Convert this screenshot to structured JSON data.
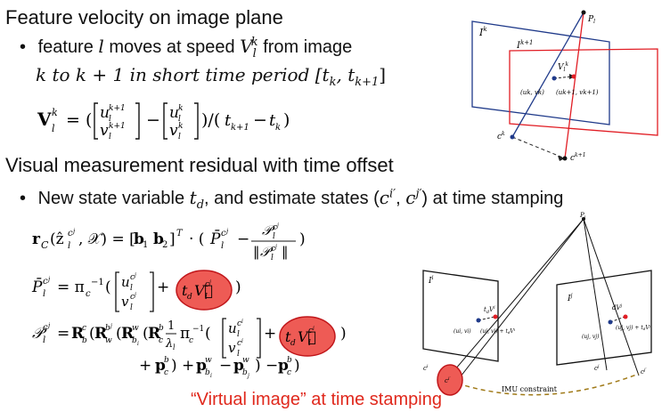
{
  "section1": {
    "title": "Feature velocity on image plane",
    "bullet": "•",
    "line1_a": "feature ",
    "line1_l": "l",
    "line1_b": "  moves at speed ",
    "line1_v": "V",
    "line1_vsub": "l",
    "line1_vsup": "k",
    "line1_c": "  from image",
    "line2": "k to k + 1 in short time period [t",
    "line2_k": "k",
    "line2_mid": ", t",
    "line2_k1": "k+1",
    "line2_end": "]",
    "equation": "V",
    "equation_sub": "l",
    "equation_sup": "k",
    "equation_rest": " = ( [u, v]^(k+1) − [u, v]^k ) / (t_(k+1) − t_k)"
  },
  "section2": {
    "title": "Visual measurement residual with time offset",
    "bullet": "•",
    "line_a": "New state variable ",
    "line_td": "t",
    "line_td_sub": "d",
    "line_b": ", and estimate states (",
    "line_ci": "c",
    "line_ci_sup": "i′",
    "line_comma": ", ",
    "line_cj": "c",
    "line_cj_sup": "j′",
    "line_c": ") at time stamping",
    "eq1": "r_C(ẑ_l^(c_j), 𝒳) = [b₁  b₂]ᵀ · (P̄_l^(c_j) − 𝒫_l^(c_j) / ‖𝒫_l^(c_j)‖)",
    "eq2": "P̄_l^(c_j) = π_c⁻¹( [u_l^(c_j), v_l^(c_j)] + t_d V_l^(c_j) )",
    "eq3a": "𝒫_l^(c_j) = R_b^c(R_w^(b_j)(R_(b_i)^w(R_c^b (1/λ_l) π_c⁻¹( [u_l^(c_i), v_l^(c_i)] + t_d V_l^(c_i) )",
    "eq3b": "+ p_c^b) + p_(b_i)^w − p_(b_j)^w) − p_c^b)",
    "caption": "“Virtual image” at time stamping"
  },
  "fig1": {
    "pl": "P",
    "pl_sub": "l",
    "ik": "I",
    "ik_sup": "k",
    "ik1": "I",
    "ik1_sup": "k+1",
    "vlk": "V",
    "vlk_sub": "l",
    "vlk_sup": "k",
    "uv_k": "(u",
    "uv_k_rest": "k, v",
    "uv_k_end": "k)",
    "uv_k1": "(u",
    "uv_k1_rest": "k+1, v",
    "uv_k1_end": "k+1)",
    "ck": "c",
    "ck_sup": "k",
    "ck1": "c",
    "ck1_sup": "k+1"
  },
  "fig2": {
    "pl": "P",
    "pl_sub": "l",
    "ii": "I",
    "ii_sup": "i",
    "ij": "I",
    "ij_sup": "j",
    "uv_i": "(u",
    "uv_i_tail": "i, v",
    "uv_i_end": "i)",
    "uv_i2": "(u",
    "uv_i2_tail": "i, v",
    "uv_i2_end": "i) + t",
    "uv_i2_sub": "d",
    "uv_i2_v": "V",
    "uv_i2_vsup": "i",
    "uv_j": "(u",
    "uv_j_tail": "j, v",
    "uv_j_end": "j)",
    "uv_j2": "(u",
    "uv_j2_tail": "j, v",
    "uv_j2_end": "j) + t",
    "uv_j2_sub": "d",
    "uv_j2_v": "V",
    "uv_j2_vsup": "j",
    "tdv_i": "t",
    "tdv_i_sub": "d",
    "tdv_i_v": "V",
    "tdv_i_vsup": "i",
    "tdv_j": "d",
    "tdv_j_v": "V",
    "tdv_j_vsup": "j",
    "ci": "c",
    "ci_sup": "i",
    "ci2": "c",
    "ci2_sup": "i′",
    "cj": "c",
    "cj_sup": "j",
    "cj2": "c",
    "cj2_sup": "j′",
    "imu": "IMU constraint"
  }
}
